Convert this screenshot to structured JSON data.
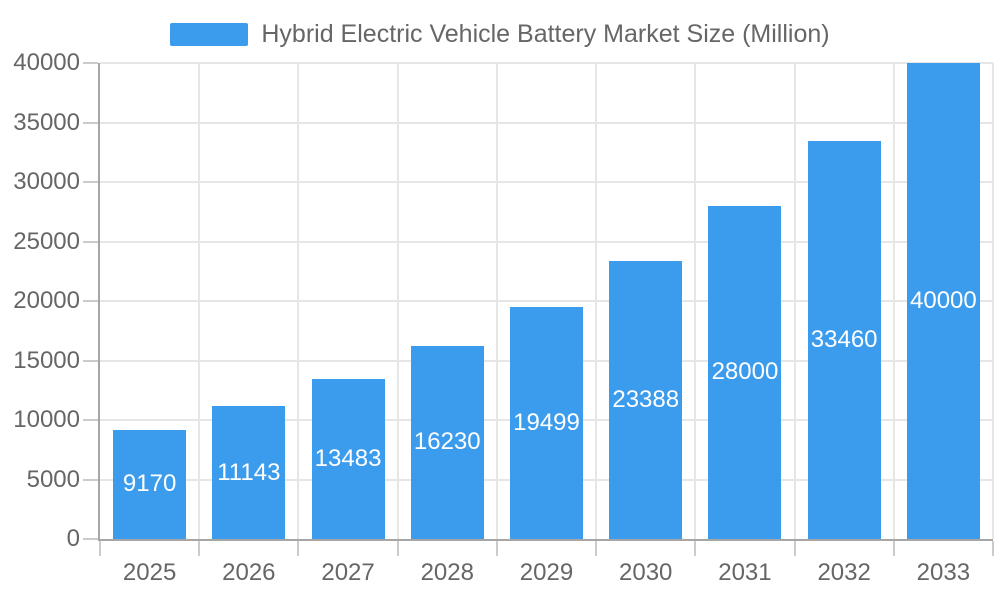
{
  "chart_data": {
    "type": "bar",
    "title": "Hybrid Electric Vehicle Battery Market Size (Million)",
    "categories": [
      "2025",
      "2026",
      "2027",
      "2028",
      "2029",
      "2030",
      "2031",
      "2032",
      "2033"
    ],
    "series": [
      {
        "name": "Hybrid Electric Vehicle Battery Market Size (Million)",
        "values": [
          9170,
          11143,
          13483,
          16230,
          19499,
          23388,
          28000,
          33460,
          40000
        ]
      }
    ],
    "value_labels_visible": true,
    "value_label_position": "inside-center",
    "xlabel": "",
    "ylabel": "",
    "ylim": [
      0,
      40000
    ],
    "yticks": [
      0,
      5000,
      10000,
      15000,
      20000,
      25000,
      30000,
      35000,
      40000
    ],
    "grid": true,
    "legend_position": "top",
    "colors": {
      "bar": "#3B9CEE",
      "value_label": "#FFFFFF",
      "axis_text": "#666666",
      "grid_line": "#E6E6E6",
      "axis_line": "#A6A6A6",
      "tick": "#CBCBCB",
      "background": "#FFFFFF"
    }
  }
}
